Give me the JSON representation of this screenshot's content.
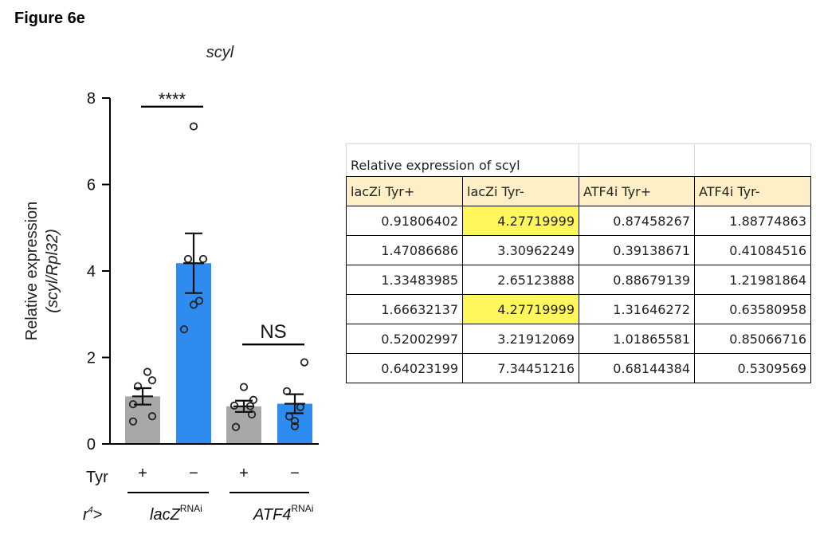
{
  "figure_label": "Figure 6e",
  "chart_data": {
    "type": "bar",
    "title": "scyl",
    "ylabel_line1": "Relative expression",
    "ylabel_line2": "(scyl/Rpl32)",
    "ylim": [
      0,
      8
    ],
    "yticks": [
      0,
      2,
      4,
      6,
      8
    ],
    "categories": [
      "lacZi Tyr+",
      "lacZi Tyr-",
      "ATF4i Tyr+",
      "ATF4i Tyr-"
    ],
    "means": [
      1.1,
      4.18,
      0.87,
      0.93
    ],
    "sem": [
      0.19,
      0.69,
      0.13,
      0.22
    ],
    "colors": [
      "#a8a8a8",
      "#2e8bef",
      "#a8a8a8",
      "#2e8bef"
    ],
    "points": [
      [
        0.91806402,
        1.47086686,
        1.33483985,
        1.66632137,
        0.52002997,
        0.64023199
      ],
      [
        4.27719999,
        3.30962249,
        2.65123888,
        4.27719999,
        3.21912069,
        7.34451216
      ],
      [
        0.87458267,
        0.39138671,
        0.88679139,
        1.31646272,
        1.01865581,
        0.68144384
      ],
      [
        1.88774863,
        0.41084516,
        1.21981864,
        0.63580958,
        0.85066716,
        0.5309569
      ]
    ],
    "tyr_row_label": "Tyr",
    "tyr_signs": [
      "+",
      "−",
      "+",
      "−"
    ],
    "genotype_prefix": "r",
    "genotype_prefix_sup": "4",
    "genotype_prefix_suffix": ">",
    "genotypes": [
      {
        "name": "lacZ",
        "sup": "RNAi"
      },
      {
        "name": "ATF4",
        "sup": "RNAi"
      }
    ],
    "significance": [
      {
        "pair": [
          0,
          1
        ],
        "label": "****",
        "y": 7.8
      },
      {
        "pair": [
          2,
          3
        ],
        "label": "NS",
        "y": 2.3
      }
    ]
  },
  "table": {
    "title": "Relative expression of scyl",
    "headers": [
      "lacZi Tyr+",
      "lacZi Tyr-",
      "ATF4i Tyr+",
      "ATF4i Tyr-"
    ],
    "rows": [
      [
        "0.91806402",
        "4.27719999",
        "0.87458267",
        "1.88774863"
      ],
      [
        "1.47086686",
        "3.30962249",
        "0.39138671",
        "0.41084516"
      ],
      [
        "1.33483985",
        "2.65123888",
        "0.88679139",
        "1.21981864"
      ],
      [
        "1.66632137",
        "4.27719999",
        "1.31646272",
        "0.63580958"
      ],
      [
        "0.52002997",
        "3.21912069",
        "1.01865581",
        "0.85066716"
      ],
      [
        "0.64023199",
        "7.34451216",
        "0.68144384",
        "0.5309569"
      ]
    ],
    "highlighted_cells": [
      [
        0,
        1
      ],
      [
        3,
        1
      ]
    ],
    "highlight_color": "#fff75c",
    "header_color": "#ffefc6"
  }
}
